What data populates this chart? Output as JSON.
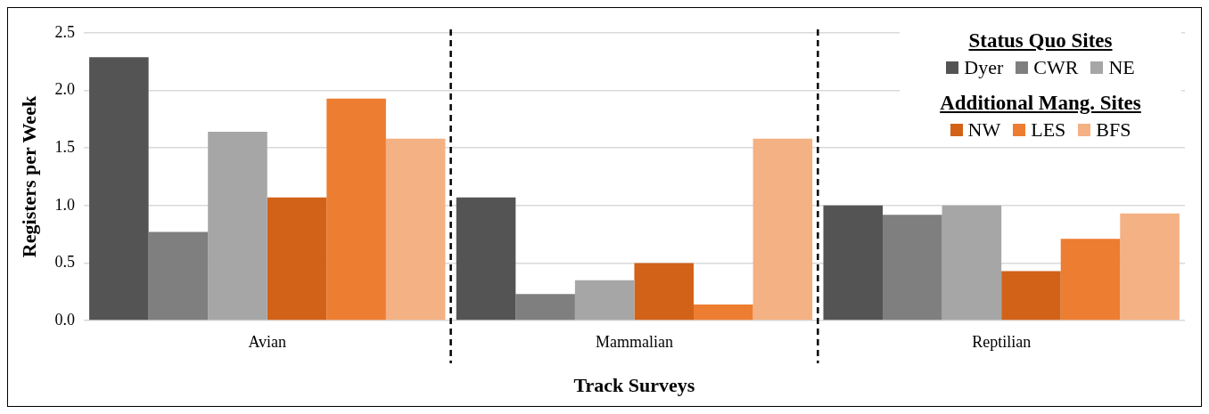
{
  "chart_data": {
    "type": "bar",
    "xlabel": "Track Surveys",
    "ylabel": "Registers per Week",
    "categories": [
      "Avian",
      "Mammalian",
      "Reptilian"
    ],
    "series": [
      {
        "name": "Dyer",
        "color": "#545454",
        "values": [
          2.29,
          1.07,
          1.0
        ]
      },
      {
        "name": "CWR",
        "color": "#7f7f7f",
        "values": [
          0.77,
          0.23,
          0.92
        ]
      },
      {
        "name": "NE",
        "color": "#a6a6a6",
        "values": [
          1.64,
          0.35,
          1.0
        ]
      },
      {
        "name": "NW",
        "color": "#d26218",
        "values": [
          1.07,
          0.5,
          0.43
        ]
      },
      {
        "name": "LES",
        "color": "#ed7d31",
        "values": [
          1.93,
          0.14,
          0.71
        ]
      },
      {
        "name": "BFS",
        "color": "#f4b183",
        "values": [
          1.58,
          1.58,
          0.93
        ]
      }
    ],
    "ylim": [
      0,
      2.5
    ],
    "yticks": [
      {
        "value": 0,
        "label": "0.0"
      },
      {
        "value": 0.5,
        "label": "0.5"
      },
      {
        "value": 1,
        "label": "1.0"
      },
      {
        "value": 1.5,
        "label": "1.5"
      },
      {
        "value": 2,
        "label": "2.0"
      },
      {
        "value": 2.5,
        "label": "2.5"
      }
    ],
    "grid": "y",
    "legend": "top right",
    "annotations": [
      "Status Quo Sites",
      "Additional Mang. Sites"
    ]
  }
}
